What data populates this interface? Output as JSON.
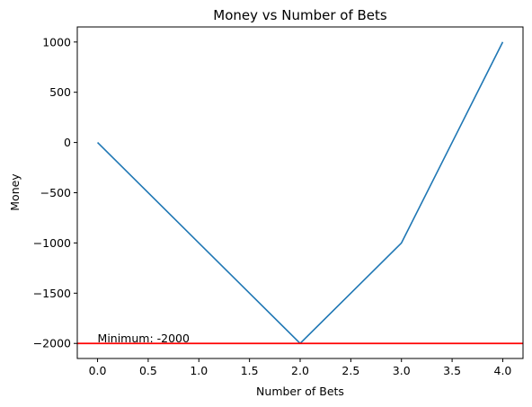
{
  "chart_data": {
    "type": "line",
    "title": "Money vs Number of Bets",
    "xlabel": "Number of Bets",
    "ylabel": "Money",
    "xlim": [
      -0.2,
      4.2
    ],
    "ylim": [
      -2150,
      1150
    ],
    "xticks": [
      0.0,
      0.5,
      1.0,
      1.5,
      2.0,
      2.5,
      3.0,
      3.5,
      4.0
    ],
    "xtick_labels": [
      "0.0",
      "0.5",
      "1.0",
      "1.5",
      "2.0",
      "2.5",
      "3.0",
      "3.5",
      "4.0"
    ],
    "yticks": [
      1000,
      500,
      0,
      -500,
      -1000,
      -1500,
      -2000
    ],
    "ytick_labels": [
      "1000",
      "500",
      "0",
      "−500",
      "−1000",
      "−1500",
      "−2000"
    ],
    "series": [
      {
        "x": [
          0,
          1,
          2,
          3,
          4
        ],
        "values": [
          0,
          -1000,
          -2000,
          -1000,
          1000
        ],
        "color": "#1f77b4"
      }
    ],
    "hline": {
      "y": -2000,
      "color": "#ff0000"
    },
    "annotation": {
      "text": "Minimum: -2000",
      "x": 0,
      "y": -2000
    },
    "grid": false
  }
}
